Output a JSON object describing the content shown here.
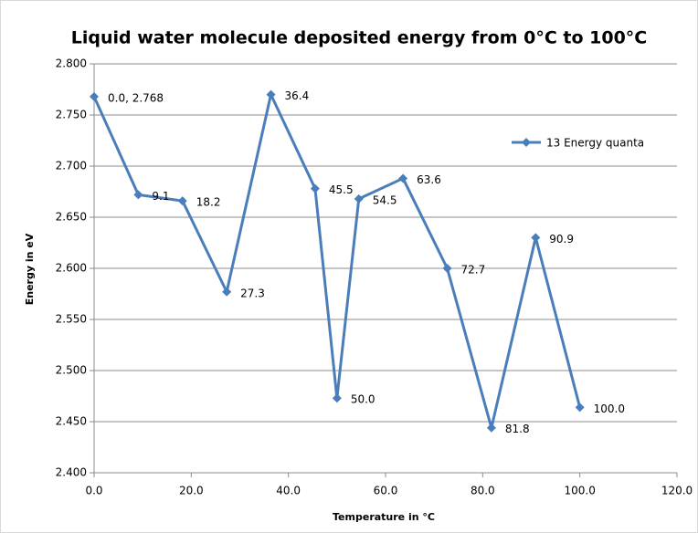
{
  "chart_data": {
    "type": "line",
    "title": "Liquid water molecule deposited energy from 0°C to 100°C",
    "xlabel": "Temperature in °C",
    "ylabel": "Energy in eV",
    "x": [
      0.0,
      9.1,
      18.2,
      27.3,
      36.4,
      45.5,
      50.0,
      54.5,
      63.6,
      72.7,
      81.8,
      90.9,
      100.0
    ],
    "series": [
      {
        "name": "13 Energy quanta",
        "color": "#4a7ebb",
        "values": [
          2.768,
          2.672,
          2.666,
          2.577,
          2.77,
          2.678,
          2.473,
          2.668,
          2.688,
          2.6,
          2.444,
          2.63,
          2.464
        ],
        "point_labels": [
          "0.0, 2.768",
          "9.1",
          "18.2",
          "27.3",
          "36.4",
          "45.5",
          "50.0",
          "54.5",
          "63.6",
          "72.7",
          "81.8",
          "90.9",
          "100.0"
        ]
      }
    ],
    "xlim": [
      0,
      120
    ],
    "xticks": [
      {
        "value": 0,
        "label": "0.0"
      },
      {
        "value": 20,
        "label": "20.0"
      },
      {
        "value": 40,
        "label": "40.0"
      },
      {
        "value": 60,
        "label": "60.0"
      },
      {
        "value": 80,
        "label": "80.0"
      },
      {
        "value": 100,
        "label": "100.0"
      },
      {
        "value": 120,
        "label": "120.0"
      }
    ],
    "ylim": [
      2.4,
      2.8
    ],
    "yticks": [
      {
        "value": 2.4,
        "label": "2.400"
      },
      {
        "value": 2.45,
        "label": "2.450"
      },
      {
        "value": 2.5,
        "label": "2.500"
      },
      {
        "value": 2.55,
        "label": "2.550"
      },
      {
        "value": 2.6,
        "label": "2.600"
      },
      {
        "value": 2.65,
        "label": "2.650"
      },
      {
        "value": 2.7,
        "label": "2.700"
      },
      {
        "value": 2.75,
        "label": "2.750"
      },
      {
        "value": 2.8,
        "label": "2.800"
      }
    ],
    "grid": true,
    "legend": "right"
  }
}
